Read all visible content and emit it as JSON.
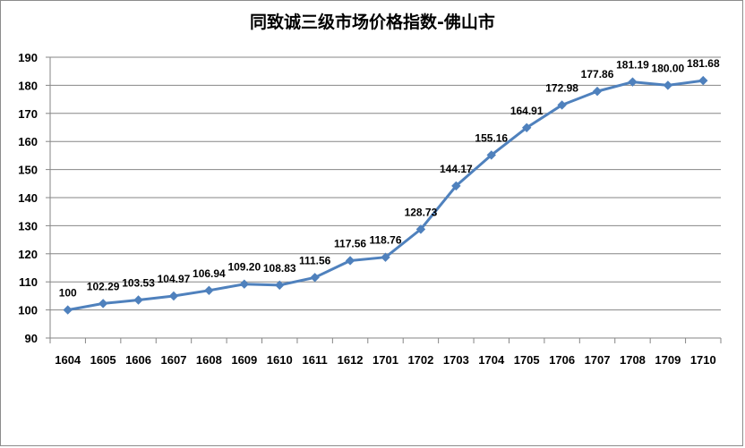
{
  "chart_data": {
    "type": "line",
    "title": "同致诚三级市场价格指数-佛山市",
    "xlabel": "",
    "ylabel": "",
    "categories": [
      "1604",
      "1605",
      "1606",
      "1607",
      "1608",
      "1609",
      "1610",
      "1611",
      "1612",
      "1701",
      "1702",
      "1703",
      "1704",
      "1705",
      "1706",
      "1707",
      "1708",
      "1709",
      "1710"
    ],
    "series": [
      {
        "values": [
          100,
          102.29,
          103.53,
          104.97,
          106.94,
          109.2,
          108.83,
          111.56,
          117.56,
          118.76,
          128.73,
          144.17,
          155.16,
          164.91,
          172.98,
          177.86,
          181.19,
          180.0,
          181.68
        ],
        "labels": [
          "100",
          "102.29",
          "103.53",
          "104.97",
          "106.94",
          "109.20",
          "108.83",
          "111.56",
          "117.56",
          "118.76",
          "128.73",
          "144.17",
          "155.16",
          "164.91",
          "172.98",
          "177.86",
          "181.19",
          "180.00",
          "181.68"
        ]
      }
    ],
    "ylim": [
      90,
      190
    ],
    "yticks": [
      90,
      100,
      110,
      120,
      130,
      140,
      150,
      160,
      170,
      180,
      190
    ],
    "grid": true,
    "legend": "none",
    "colors": {
      "line": "#4f81bd",
      "grid": "#868686",
      "axis": "#868686"
    }
  }
}
